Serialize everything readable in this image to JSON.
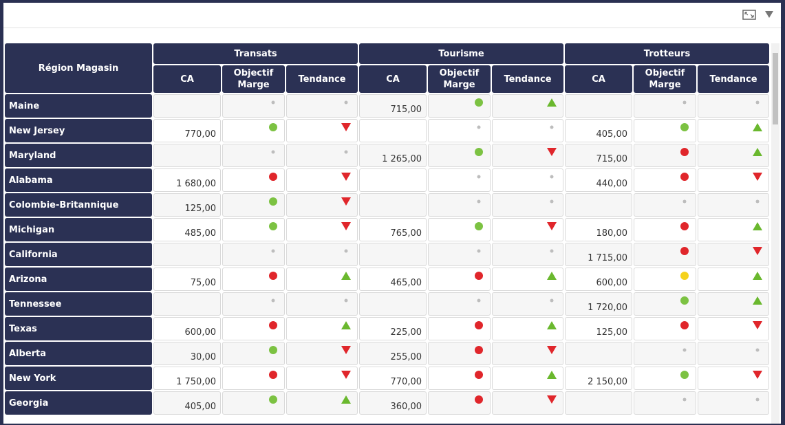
{
  "table": {
    "corner": "Région Magasin",
    "groups": [
      "Transats",
      "Tourisme",
      "Trotteurs"
    ],
    "subcolumns": [
      "CA",
      "Objectif Marge",
      "Tendance"
    ],
    "rows": [
      {
        "region": "Maine",
        "cells": [
          {
            "ca": null,
            "objectif": "grey",
            "tendance": "none"
          },
          {
            "ca": "715,00",
            "objectif": "green",
            "tendance": "up"
          },
          {
            "ca": null,
            "objectif": "grey",
            "tendance": "none"
          }
        ]
      },
      {
        "region": "New Jersey",
        "cells": [
          {
            "ca": "770,00",
            "objectif": "green",
            "tendance": "down"
          },
          {
            "ca": null,
            "objectif": "grey",
            "tendance": "none"
          },
          {
            "ca": "405,00",
            "objectif": "green",
            "tendance": "up"
          }
        ]
      },
      {
        "region": "Maryland",
        "cells": [
          {
            "ca": null,
            "objectif": "grey",
            "tendance": "none"
          },
          {
            "ca": "1 265,00",
            "objectif": "green",
            "tendance": "down"
          },
          {
            "ca": "715,00",
            "objectif": "red",
            "tendance": "up"
          }
        ]
      },
      {
        "region": "Alabama",
        "cells": [
          {
            "ca": "1 680,00",
            "objectif": "red",
            "tendance": "down"
          },
          {
            "ca": null,
            "objectif": "grey",
            "tendance": "none"
          },
          {
            "ca": "440,00",
            "objectif": "red",
            "tendance": "down"
          }
        ]
      },
      {
        "region": "Colombie-Britannique",
        "cells": [
          {
            "ca": "125,00",
            "objectif": "green",
            "tendance": "down"
          },
          {
            "ca": null,
            "objectif": "grey",
            "tendance": "none"
          },
          {
            "ca": null,
            "objectif": "grey",
            "tendance": "none"
          }
        ]
      },
      {
        "region": "Michigan",
        "cells": [
          {
            "ca": "485,00",
            "objectif": "green",
            "tendance": "down"
          },
          {
            "ca": "765,00",
            "objectif": "green",
            "tendance": "down"
          },
          {
            "ca": "180,00",
            "objectif": "red",
            "tendance": "up"
          }
        ]
      },
      {
        "region": "California",
        "cells": [
          {
            "ca": null,
            "objectif": "grey",
            "tendance": "none"
          },
          {
            "ca": null,
            "objectif": "grey",
            "tendance": "none"
          },
          {
            "ca": "1 715,00",
            "objectif": "red",
            "tendance": "down"
          }
        ]
      },
      {
        "region": "Arizona",
        "cells": [
          {
            "ca": "75,00",
            "objectif": "red",
            "tendance": "up"
          },
          {
            "ca": "465,00",
            "objectif": "red",
            "tendance": "up"
          },
          {
            "ca": "600,00",
            "objectif": "yellow",
            "tendance": "up"
          }
        ]
      },
      {
        "region": "Tennessee",
        "cells": [
          {
            "ca": null,
            "objectif": "grey",
            "tendance": "none"
          },
          {
            "ca": null,
            "objectif": "grey",
            "tendance": "none"
          },
          {
            "ca": "1 720,00",
            "objectif": "green",
            "tendance": "up"
          }
        ]
      },
      {
        "region": "Texas",
        "cells": [
          {
            "ca": "600,00",
            "objectif": "red",
            "tendance": "up"
          },
          {
            "ca": "225,00",
            "objectif": "red",
            "tendance": "up"
          },
          {
            "ca": "125,00",
            "objectif": "red",
            "tendance": "down"
          }
        ]
      },
      {
        "region": "Alberta",
        "cells": [
          {
            "ca": "30,00",
            "objectif": "green",
            "tendance": "down"
          },
          {
            "ca": "255,00",
            "objectif": "red",
            "tendance": "down"
          },
          {
            "ca": null,
            "objectif": "grey",
            "tendance": "none"
          }
        ]
      },
      {
        "region": "New York",
        "cells": [
          {
            "ca": "1 750,00",
            "objectif": "red",
            "tendance": "down"
          },
          {
            "ca": "770,00",
            "objectif": "red",
            "tendance": "up"
          },
          {
            "ca": "2 150,00",
            "objectif": "green",
            "tendance": "down"
          }
        ]
      },
      {
        "region": "Georgia",
        "cells": [
          {
            "ca": "405,00",
            "objectif": "green",
            "tendance": "up"
          },
          {
            "ca": "360,00",
            "objectif": "red",
            "tendance": "down"
          },
          {
            "ca": null,
            "objectif": "grey",
            "tendance": "none"
          }
        ]
      }
    ]
  }
}
